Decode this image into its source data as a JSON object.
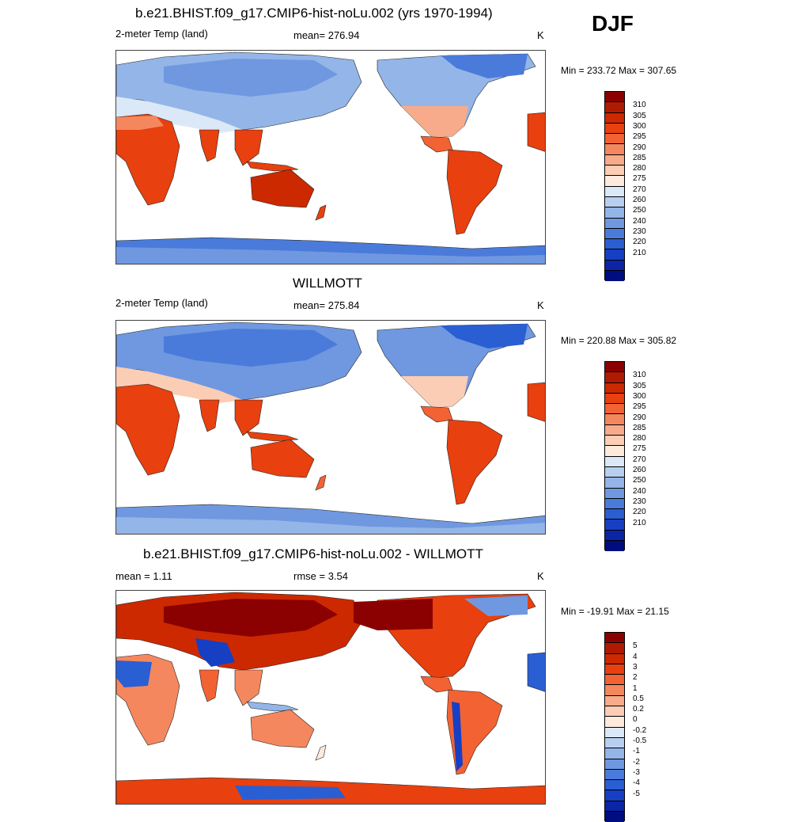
{
  "season": "DJF",
  "panels": [
    {
      "title": "b.e21.BHIST.f09_g17.CMIP6-hist-noLu.002 (yrs 1970-1994)",
      "left_label": "2-meter Temp (land)",
      "center_label": "mean= 276.94",
      "units": "K",
      "minmax": "Min = 233.72 Max = 307.65"
    },
    {
      "title": "WILLMOTT",
      "left_label": "2-meter Temp (land)",
      "center_label": "mean= 275.84",
      "units": "K",
      "minmax": "Min = 220.88 Max = 305.82"
    },
    {
      "title": "b.e21.BHIST.f09_g17.CMIP6-hist-noLu.002 - WILLMOTT",
      "left_label": "mean =   1.11",
      "center_label": "rmse =   3.54",
      "units": "K",
      "minmax": "Min = -19.91 Max =  21.15"
    }
  ],
  "colorbars": {
    "temperature": {
      "colors": [
        "#8b0000",
        "#b01a00",
        "#cc2900",
        "#e8400e",
        "#f26233",
        "#f5875f",
        "#f8ab8a",
        "#fbcdb4",
        "#fdeadc",
        "#dbe8f7",
        "#b8cff0",
        "#94b5e8",
        "#6f98e0",
        "#4a7bdb",
        "#2a5ed3",
        "#163fc4",
        "#0b25a6",
        "#000d80"
      ],
      "labels": [
        "310",
        "305",
        "300",
        "295",
        "290",
        "285",
        "280",
        "275",
        "270",
        "260",
        "250",
        "240",
        "230",
        "220",
        "210"
      ]
    },
    "difference": {
      "colors": [
        "#8b0000",
        "#b01a00",
        "#cc2900",
        "#e8400e",
        "#f26233",
        "#f5875f",
        "#f8ab8a",
        "#fbcdb4",
        "#fdeadc",
        "#dbe8f7",
        "#b8cff0",
        "#94b5e8",
        "#6f98e0",
        "#4a7bdb",
        "#2a5ed3",
        "#163fc4",
        "#0b25a6",
        "#000d80"
      ],
      "labels": [
        "5",
        "4",
        "3",
        "2",
        "1",
        "0.5",
        "0.2",
        "0",
        "-0.2",
        "-0.5",
        "-1",
        "-2",
        "-3",
        "-4",
        "-5"
      ]
    }
  }
}
